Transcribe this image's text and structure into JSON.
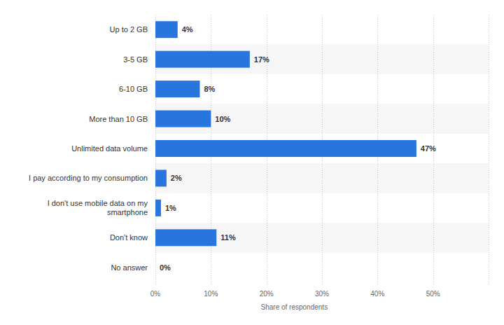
{
  "chart_data": {
    "type": "bar",
    "orientation": "horizontal",
    "categories": [
      "Up to 2 GB",
      "3-5 GB",
      "6-10 GB",
      "More than 10 GB",
      "Unlimited data volume",
      "I pay according to my consumption",
      "I don't use mobile data on my smartphone",
      "Don't know",
      "No answer"
    ],
    "values": [
      4,
      17,
      8,
      10,
      47,
      2,
      1,
      11,
      0
    ],
    "value_labels": [
      "4%",
      "17%",
      "8%",
      "10%",
      "47%",
      "2%",
      "1%",
      "11%",
      "0%"
    ],
    "data_labels": true,
    "color": "#2876dd",
    "xlabel": "Share of respondents",
    "xlim": [
      0,
      60
    ],
    "xticks": [
      {
        "value": 0,
        "label": "0%"
      },
      {
        "value": 10,
        "label": "10%"
      },
      {
        "value": 20,
        "label": "20%"
      },
      {
        "value": 30,
        "label": "30%"
      },
      {
        "value": 40,
        "label": "40%"
      },
      {
        "value": 50,
        "label": "50%"
      }
    ],
    "grid": true
  }
}
